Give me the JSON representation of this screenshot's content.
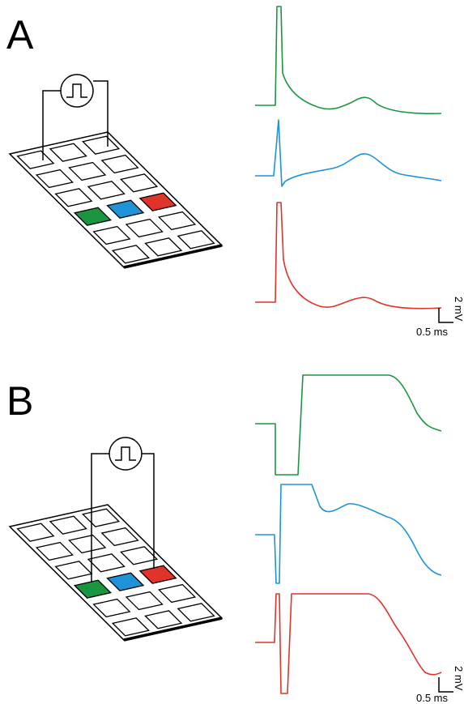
{
  "panels": [
    {
      "label": "A",
      "scale_y": "2 mV",
      "scale_x": "0.5 ms"
    },
    {
      "label": "B",
      "scale_y": "2 mV",
      "scale_x": "0.5 ms"
    }
  ]
}
